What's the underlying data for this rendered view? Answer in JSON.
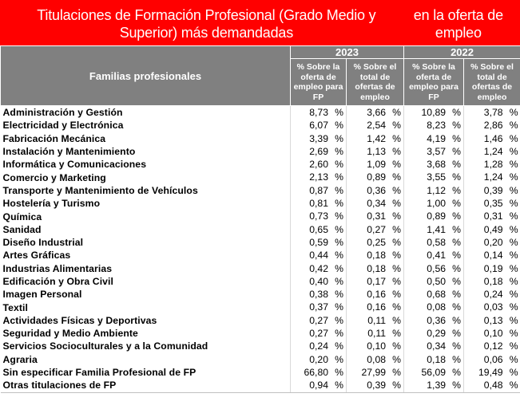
{
  "title": {
    "line1": "Titulaciones de Formación Profesional (Grado Medio y Superior) más demandadas",
    "line2": "en la oferta de empleo"
  },
  "header": {
    "family_col": "Familias profesionales",
    "year_2023": "2023",
    "year_2022": "2022",
    "col_share_fp": "% Sobre la oferta de empleo para FP",
    "col_share_total": "% Sobre el total de ofertas de empleo",
    "col_share_fp_2022": "% Sobre la oferta de empleo para FP",
    "col_share_total_2022": "% Sobre el total de ofertas de empleo"
  },
  "percent_sign": "%",
  "rows": [
    {
      "name": "Administración y Gestión",
      "v2023_fp": "8,73",
      "v2023_total": "3,66",
      "v2022_fp": "10,89",
      "v2022_total": "3,78"
    },
    {
      "name": "Electricidad y Electrónica",
      "v2023_fp": "6,07",
      "v2023_total": "2,54",
      "v2022_fp": "8,23",
      "v2022_total": "2,86"
    },
    {
      "name": "Fabricación Mecánica",
      "v2023_fp": "3,39",
      "v2023_total": "1,42",
      "v2022_fp": "4,19",
      "v2022_total": "1,46"
    },
    {
      "name": "Instalación y Mantenimiento",
      "v2023_fp": "2,69",
      "v2023_total": "1,13",
      "v2022_fp": "3,57",
      "v2022_total": "1,24"
    },
    {
      "name": "Informática y Comunicaciones",
      "v2023_fp": "2,60",
      "v2023_total": "1,09",
      "v2022_fp": "3,68",
      "v2022_total": "1,28"
    },
    {
      "name": "Comercio y Marketing",
      "v2023_fp": "2,13",
      "v2023_total": "0,89",
      "v2022_fp": "3,55",
      "v2022_total": "1,24"
    },
    {
      "name": "Transporte y Mantenimiento de Vehículos",
      "v2023_fp": "0,87",
      "v2023_total": "0,36",
      "v2022_fp": "1,12",
      "v2022_total": "0,39"
    },
    {
      "name": "Hostelería y Turismo",
      "v2023_fp": "0,81",
      "v2023_total": "0,34",
      "v2022_fp": "1,00",
      "v2022_total": "0,35"
    },
    {
      "name": "Química",
      "v2023_fp": "0,73",
      "v2023_total": "0,31",
      "v2022_fp": "0,89",
      "v2022_total": "0,31"
    },
    {
      "name": "Sanidad",
      "v2023_fp": "0,65",
      "v2023_total": "0,27",
      "v2022_fp": "1,41",
      "v2022_total": "0,49"
    },
    {
      "name": "Diseño Industrial",
      "v2023_fp": "0,59",
      "v2023_total": "0,25",
      "v2022_fp": "0,58",
      "v2022_total": "0,20"
    },
    {
      "name": "Artes Gráficas",
      "v2023_fp": "0,44",
      "v2023_total": "0,18",
      "v2022_fp": "0,41",
      "v2022_total": "0,14"
    },
    {
      "name": "Industrias Alimentarias",
      "v2023_fp": "0,42",
      "v2023_total": "0,18",
      "v2022_fp": "0,56",
      "v2022_total": "0,19"
    },
    {
      "name": "Edificación y Obra Civil",
      "v2023_fp": "0,40",
      "v2023_total": "0,17",
      "v2022_fp": "0,50",
      "v2022_total": "0,18"
    },
    {
      "name": "Imagen Personal",
      "v2023_fp": "0,38",
      "v2023_total": "0,16",
      "v2022_fp": "0,68",
      "v2022_total": "0,24"
    },
    {
      "name": "Textil",
      "v2023_fp": "0,37",
      "v2023_total": "0,16",
      "v2022_fp": "0,08",
      "v2022_total": "0,03"
    },
    {
      "name": "Actividades Físicas y Deportivas",
      "v2023_fp": "0,27",
      "v2023_total": "0,11",
      "v2022_fp": "0,36",
      "v2022_total": "0,13"
    },
    {
      "name": "Seguridad y Medio Ambiente",
      "v2023_fp": "0,27",
      "v2023_total": "0,11",
      "v2022_fp": "0,29",
      "v2022_total": "0,10"
    },
    {
      "name": "Servicios Socioculturales y a la Comunidad",
      "v2023_fp": "0,24",
      "v2023_total": "0,10",
      "v2022_fp": "0,34",
      "v2022_total": "0,12"
    },
    {
      "name": "Agraria",
      "v2023_fp": "0,20",
      "v2023_total": "0,08",
      "v2022_fp": "0,18",
      "v2022_total": "0,06"
    },
    {
      "name": "Sin especificar Familia Profesional de FP",
      "v2023_fp": "66,80",
      "v2023_total": "27,99",
      "v2022_fp": "56,09",
      "v2022_total": "19,49"
    },
    {
      "name": "Otras titulaciones de FP",
      "v2023_fp": "0,94",
      "v2023_total": "0,39",
      "v2022_fp": "1,39",
      "v2022_total": "0,48"
    }
  ],
  "colors": {
    "title_bg": "#ff0000",
    "header_bg": "#808080",
    "header_text": "#ffffff"
  }
}
